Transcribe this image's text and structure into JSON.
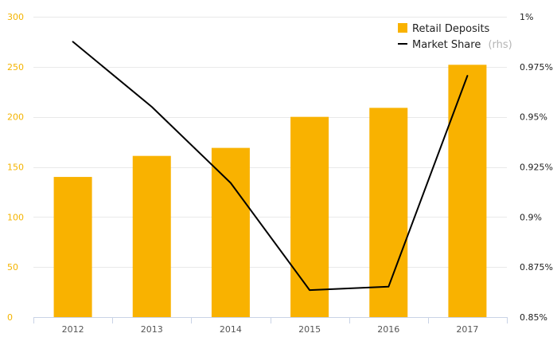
{
  "chart_data": {
    "type": "bar",
    "categories": [
      "2012",
      "2013",
      "2014",
      "2015",
      "2016",
      "2017"
    ],
    "series": [
      {
        "name": "Retail Deposits",
        "type": "bar",
        "axis": "left",
        "color": "#f9b200",
        "values": [
          140,
          161,
          169,
          200,
          209,
          252
        ]
      },
      {
        "name": "Market Share",
        "name_suffix": "(rhs)",
        "type": "line",
        "axis": "right",
        "color": "#000000",
        "values": [
          0.9875,
          0.955,
          0.917,
          0.8635,
          0.8652,
          0.9705
        ]
      }
    ],
    "y_left": {
      "ylim": [
        0,
        300
      ],
      "ticks": [
        0,
        50,
        100,
        150,
        200,
        250,
        300
      ],
      "tick_labels": [
        "0",
        "50",
        "100",
        "150",
        "200",
        "250",
        "300"
      ],
      "color": "#f4b400"
    },
    "y_right": {
      "ylim": [
        0.85,
        1.0
      ],
      "ticks": [
        0.85,
        0.875,
        0.9,
        0.925,
        0.95,
        0.975,
        1.0
      ],
      "tick_labels": [
        "0.85%",
        "0.875%",
        "0.9%",
        "0.925%",
        "0.95%",
        "0.975%",
        "1%"
      ]
    },
    "grid": true,
    "legend_position": "top-right"
  }
}
